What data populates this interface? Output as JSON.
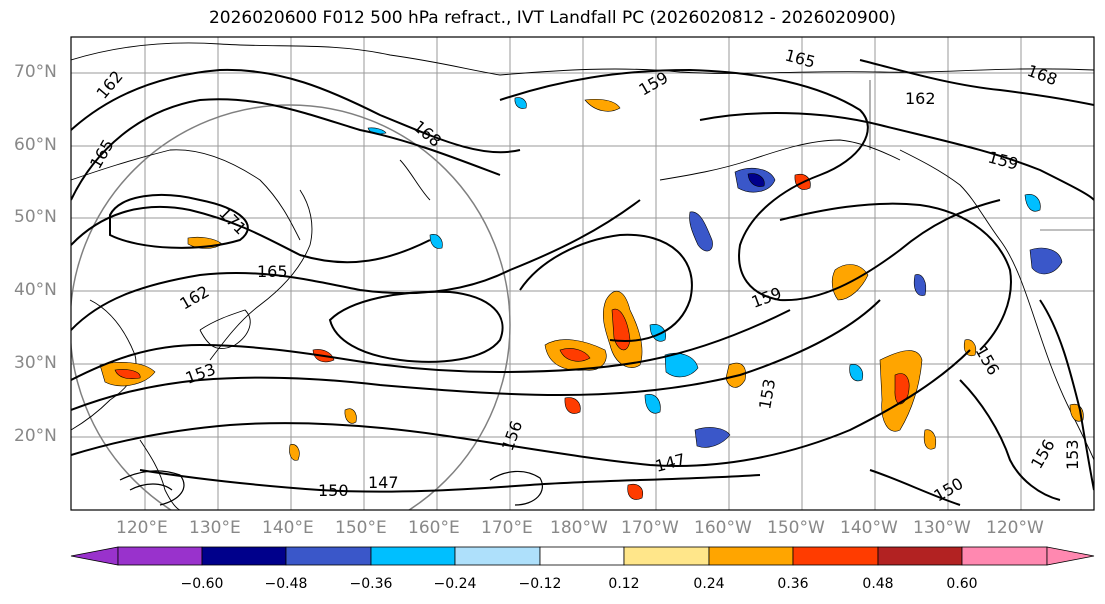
{
  "title": "2026020600 F012 500 hPa refract., IVT Landfall PC (2026020812 - 2026020900)",
  "lat_labels": [
    "70°N",
    "60°N",
    "50°N",
    "40°N",
    "30°N",
    "20°N"
  ],
  "lon_labels": [
    "120°E",
    "130°E",
    "140°E",
    "150°E",
    "160°E",
    "170°E",
    "180°W",
    "170°W",
    "160°W",
    "150°W",
    "140°W",
    "130°W",
    "120°W"
  ],
  "contour_labels": [
    "162",
    "165",
    "168",
    "171",
    "165",
    "162",
    "159",
    "165",
    "168",
    "162",
    "159",
    "159",
    "156",
    "153",
    "150",
    "147",
    "150",
    "147",
    "156",
    "153",
    "153",
    "156"
  ],
  "colorbar": {
    "ticks": [
      "−0.60",
      "−0.48",
      "−0.36",
      "−0.24",
      "−0.12",
      "0.12",
      "0.24",
      "0.36",
      "0.48",
      "0.60"
    ],
    "colors": [
      "#9932cc",
      "#00008b",
      "#3a57c9",
      "#00bfff",
      "#aee0fb",
      "#ffffff",
      "#ffe68a",
      "#ffa500",
      "#ff3c00",
      "#b22222",
      "#ff88b0"
    ]
  }
}
